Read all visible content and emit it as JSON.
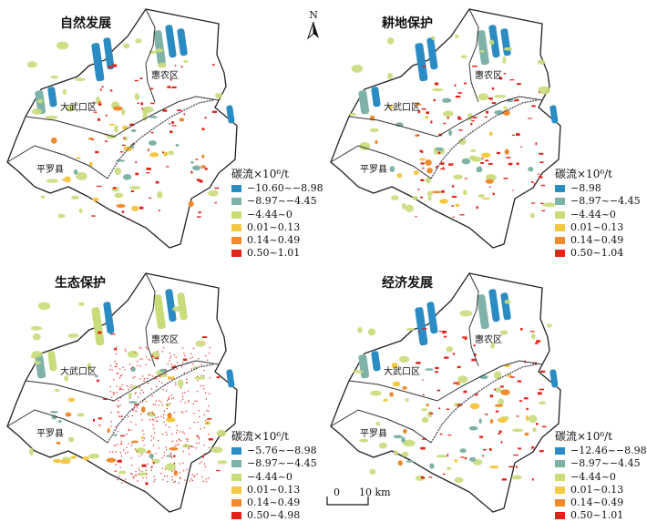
{
  "north_label": "N",
  "scale": {
    "zero": "0",
    "distance": "10 km"
  },
  "legend_title": "碳流×10⁶/t",
  "colors": [
    "#2b8cc4",
    "#7fb2a8",
    "#c8dc7a",
    "#f5c842",
    "#f08a2c",
    "#e32219"
  ],
  "district_labels": {
    "huinong": "惠农区",
    "dawukou": "大武口区",
    "pingluo": "平罗县"
  },
  "panels": [
    {
      "title": "自然发展",
      "legend": [
        "−10.60~−8.98",
        "−8.97~−4.45",
        "−4.44~0",
        "0.01~0.13",
        "0.14~0.49",
        "0.50~1.01"
      ]
    },
    {
      "title": "耕地保护",
      "legend": [
        "−8.98",
        "−8.97~−4.45",
        "−4.44~0",
        "0.01~0.13",
        "0.14~0.49",
        "0.50~1.04"
      ]
    },
    {
      "title": "生态保护",
      "legend": [
        "−5.76~−8.98",
        "−8.97~−4.45",
        "−4.44~0",
        "0.01~0.13",
        "0.14~0.49",
        "0.50~4.98"
      ]
    },
    {
      "title": "经济发展",
      "legend": [
        "−12.46~−8.98",
        "−8.97~−4.45",
        "−4.44~0",
        "0.01~0.13",
        "0.14~0.49",
        "0.50~1.01"
      ]
    }
  ]
}
